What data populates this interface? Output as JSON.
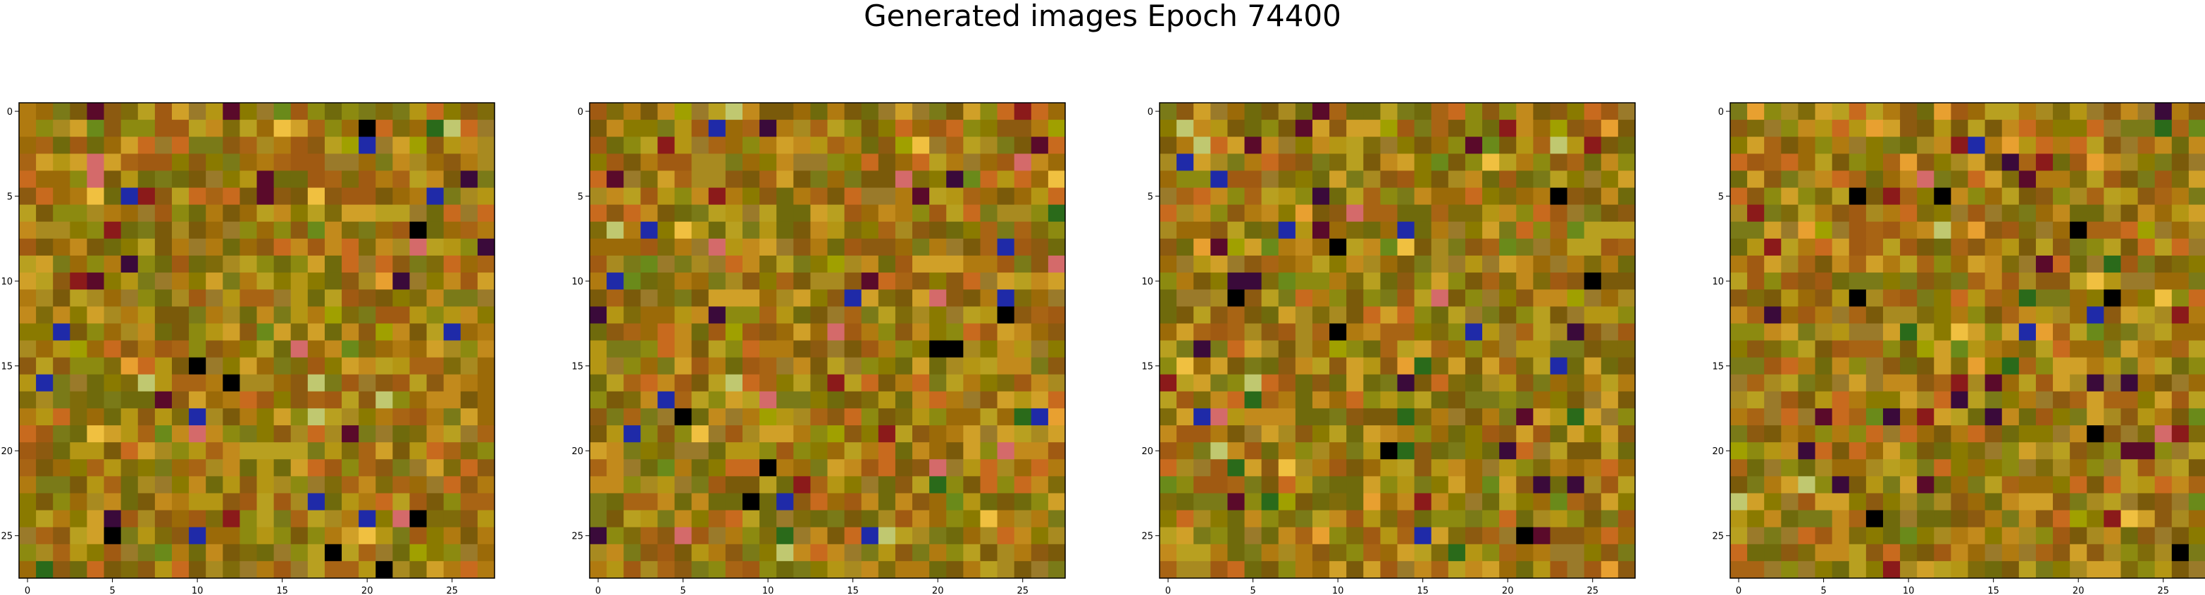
{
  "figure": {
    "title": "Generated images Epoch 74400"
  },
  "chart_data": {
    "type": "heatmap",
    "title": "Generated images Epoch 74400",
    "image_size": 28,
    "num_images": 4,
    "xticks": [
      0,
      5,
      10,
      15,
      20,
      25
    ],
    "yticks": [
      0,
      5,
      10,
      15,
      20,
      25
    ],
    "xlabel": "",
    "ylabel": "",
    "palette": [
      "#8a7a00",
      "#9b6a08",
      "#b07a10",
      "#7f6b0a",
      "#a86414",
      "#c28a1c",
      "#8c8a10",
      "#a05a12",
      "#6f6a0c",
      "#b8a020",
      "#c86a1e",
      "#9a7a2a",
      "#7a5a0a",
      "#a88a20",
      "#8c5a10",
      "#b49614",
      "#d0a028",
      "#7a7a18"
    ],
    "accents": [
      "#8b1a1a",
      "#000000",
      "#1f2aa8",
      "#6a8a1a",
      "#5a0a2a",
      "#e8a030",
      "#d46a6a",
      "#f0c040",
      "#2a6a1a",
      "#c0c870",
      "#a0a000",
      "#3a0a3a"
    ],
    "grid": false
  }
}
